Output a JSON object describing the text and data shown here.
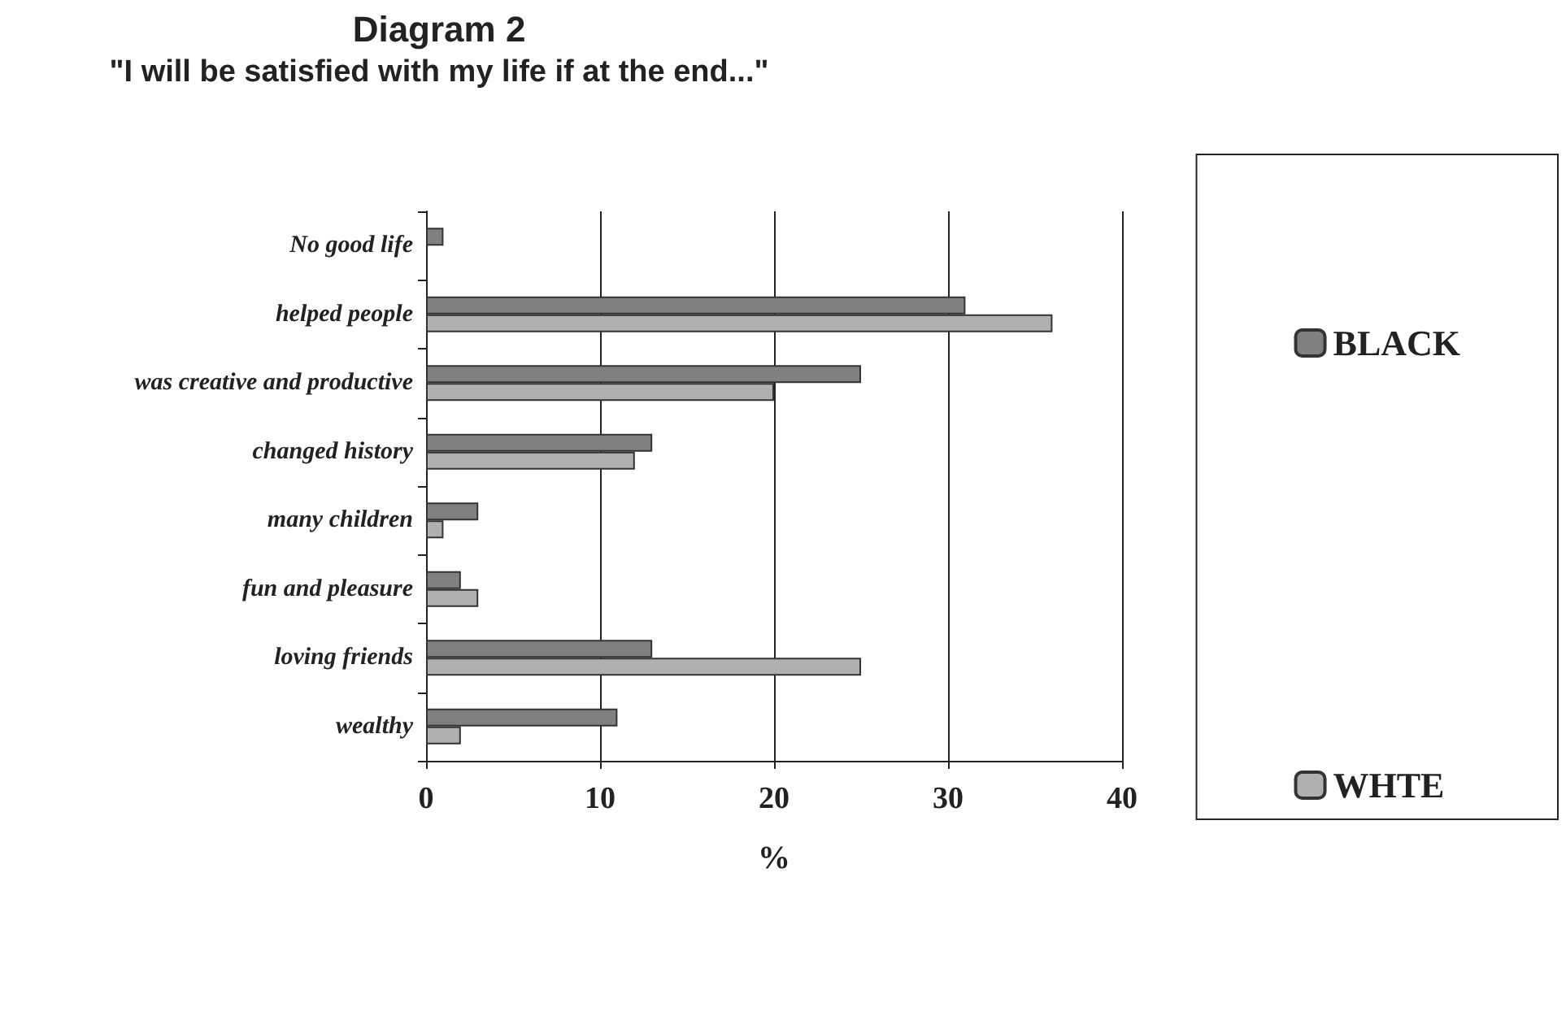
{
  "chart_data": {
    "type": "bar",
    "orientation": "horizontal",
    "title": "Diagram 2",
    "subtitle": "\"I will be satisfied with my life if at the end...\"",
    "xlabel": "%",
    "categories": [
      "No good life",
      "helped people",
      "was creative and productive",
      "changed history",
      "many children",
      "fun and pleasure",
      "loving friends",
      "wealthy"
    ],
    "series": [
      {
        "name": "BLACK",
        "color": "#808080",
        "values": [
          1,
          31,
          25,
          13,
          3,
          2,
          13,
          11
        ]
      },
      {
        "name": "WHTE",
        "color": "#b0b0b0",
        "values": [
          0,
          36,
          20,
          12,
          1,
          3,
          25,
          2
        ]
      }
    ],
    "xlim": [
      0,
      40
    ],
    "xticks": [
      0,
      10,
      20,
      30,
      40
    ],
    "grid": "x",
    "legend": "right"
  }
}
